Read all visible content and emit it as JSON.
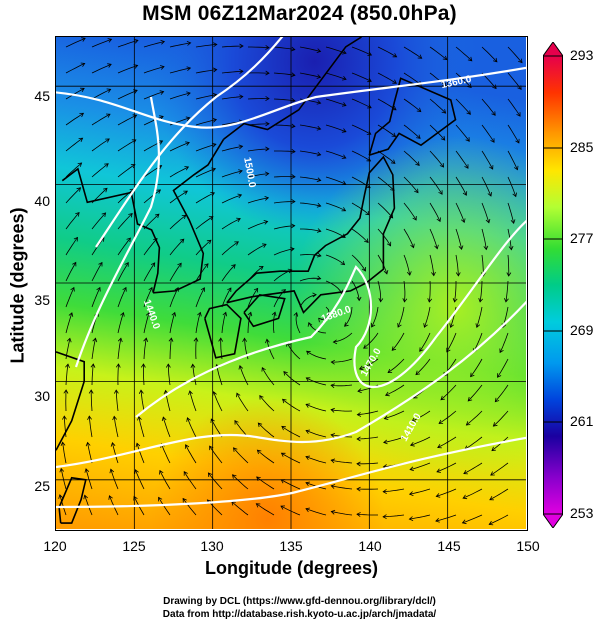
{
  "title": "MSM 06Z12Mar2024 (850.0hPa)",
  "x_axis": {
    "label": "Longitude (degrees)",
    "ticks": [
      "120",
      "125",
      "130",
      "135",
      "140",
      "145",
      "150"
    ]
  },
  "y_axis": {
    "label": "Latitude  (degrees)",
    "ticks": [
      "25",
      "30",
      "35",
      "40",
      "45"
    ]
  },
  "colorbar": {
    "ticks": [
      "293",
      "285",
      "277",
      "269",
      "261",
      "253"
    ],
    "colors": [
      "#e6004c",
      "#ff3300",
      "#ff9900",
      "#ffe600",
      "#b3ff33",
      "#33dd33",
      "#00cc88",
      "#00ccdd",
      "#0099ee",
      "#0044dd",
      "#1a00a0",
      "#8800cc",
      "#e000e0"
    ]
  },
  "contour_labels": [
    "1360.0",
    "1500.0",
    "1440.0",
    "1380.0",
    "1470.0",
    "1410.0"
  ],
  "credits": {
    "line1": "Drawing by DCL (https://www.gfd-dennou.org/library/dcl/)",
    "line2": "Data from http://database.rish.kyoto-u.ac.jp/arch/jmadata/"
  },
  "chart_data": {
    "type": "heatmap",
    "title": "MSM 06Z12Mar2024 (850.0hPa)",
    "xlabel": "Longitude (degrees)",
    "ylabel": "Latitude  (degrees)",
    "xlim": [
      120,
      150
    ],
    "ylim": [
      22.5,
      47.5
    ],
    "colorbar_range": [
      253,
      293
    ],
    "overlays": [
      "streamlines",
      "geopotential height contours (white)",
      "coastlines (black)"
    ]
  }
}
